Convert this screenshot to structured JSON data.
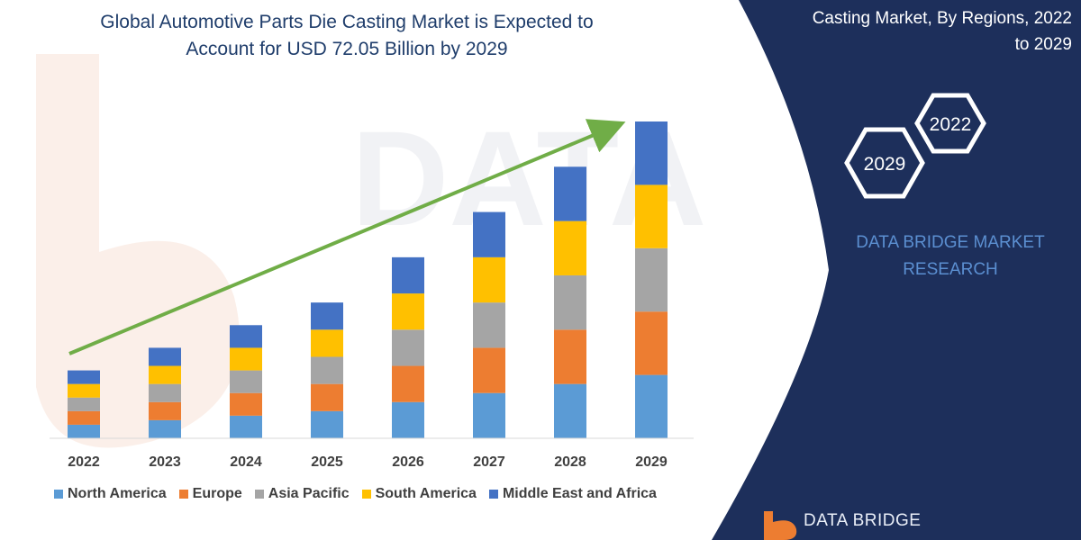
{
  "header": {
    "title_line1": "Global Automotive Parts Die Casting Market is Expected to",
    "title_line2": "Account for USD 72.05 Billion by 2029",
    "right_title_line1": "Casting Market, By Regions, 2022",
    "right_title_line2": "to 2029"
  },
  "badges": {
    "year_a": "2022",
    "year_b": "2029"
  },
  "brand": {
    "line1": "DATA BRIDGE MARKET",
    "line2": "RESEARCH",
    "logo_text": "DATA BRIDGE"
  },
  "colors": {
    "navy_panel": "#1d2f5b",
    "north_america": "#5b9bd5",
    "europe": "#ed7d31",
    "asia_pacific": "#a5a5a5",
    "south_america": "#ffc000",
    "middle_east_africa": "#4472c4",
    "arrow": "#70ad47"
  },
  "chart_data": {
    "type": "bar",
    "stacked": true,
    "categories": [
      "2022",
      "2023",
      "2024",
      "2025",
      "2026",
      "2027",
      "2028",
      "2029"
    ],
    "series": [
      {
        "name": "North America",
        "values": [
          15,
          20,
          25,
          30,
          40,
          50,
          60,
          70
        ]
      },
      {
        "name": "Europe",
        "values": [
          15,
          20,
          25,
          30,
          40,
          50,
          60,
          70
        ]
      },
      {
        "name": "Asia Pacific",
        "values": [
          15,
          20,
          25,
          30,
          40,
          50,
          60,
          70
        ]
      },
      {
        "name": "South America",
        "values": [
          15,
          20,
          25,
          30,
          40,
          50,
          60,
          70
        ]
      },
      {
        "name": "Middle East and Africa",
        "values": [
          15,
          20,
          25,
          30,
          40,
          50,
          60,
          70
        ]
      }
    ],
    "ylim": [
      0,
      350
    ],
    "grid": false,
    "legend_position": "bottom",
    "trend_arrow": true
  }
}
